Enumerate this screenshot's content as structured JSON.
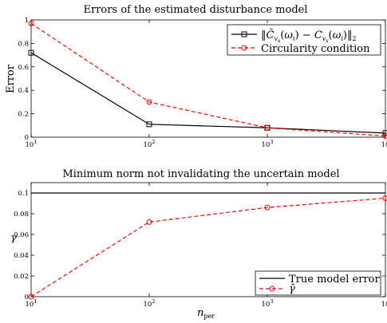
{
  "chart_data": [
    {
      "type": "line",
      "title": "Errors of the estimated disturbance model",
      "ylabel": "Error",
      "xscale": "log",
      "xlim": [
        10,
        10000
      ],
      "ylim": [
        0,
        1
      ],
      "x_tick_labels": [
        {
          "base": "10",
          "exp": "1"
        },
        {
          "base": "10",
          "exp": "2"
        },
        {
          "base": "10",
          "exp": "3"
        },
        {
          "base": "10",
          "exp": ""
        }
      ],
      "y_tick_labels": [
        "0",
        "0.2",
        "0.4",
        "0.6",
        "0.8",
        "1"
      ],
      "legend_position": "top-right",
      "series": [
        {
          "name": "||Ĉ_{v_s}(ω_i) − C_{v_s}(ω_i)||_2",
          "color": "#000000",
          "style": "solid",
          "marker": "square",
          "x": [
            10,
            100,
            1000,
            10000
          ],
          "y": [
            0.72,
            0.11,
            0.08,
            0.035
          ]
        },
        {
          "name": "Circularity condition",
          "color": "#ff0000",
          "style": "dashed",
          "marker": "circle",
          "x": [
            10,
            100,
            1000,
            10000
          ],
          "y": [
            0.97,
            0.3,
            0.08,
            0.01
          ]
        }
      ]
    },
    {
      "type": "line",
      "title": "Minimum norm not invalidating the uncertain model",
      "xlabel": "n_per",
      "ylabel": "γ",
      "xscale": "log",
      "xlim": [
        10,
        10000
      ],
      "ylim": [
        0,
        0.11
      ],
      "x_tick_labels": [
        {
          "base": "10",
          "exp": "1"
        },
        {
          "base": "10",
          "exp": "2"
        },
        {
          "base": "10",
          "exp": "3"
        },
        {
          "base": "10",
          "exp": ""
        }
      ],
      "y_tick_labels": [
        "0",
        "0.02",
        "0.04",
        "0.06",
        "0.08",
        "0.1"
      ],
      "legend_position": "bottom-right",
      "series": [
        {
          "name": "True model error",
          "color": "#000000",
          "style": "solid",
          "marker": "none",
          "x": [
            10,
            10000
          ],
          "y": [
            0.1,
            0.1
          ]
        },
        {
          "name": "γ̂",
          "color": "#ff0000",
          "style": "dashed",
          "marker": "circle",
          "x": [
            10,
            100,
            1000,
            10000
          ],
          "y": [
            0.0,
            0.072,
            0.086,
            0.095
          ]
        }
      ]
    }
  ]
}
